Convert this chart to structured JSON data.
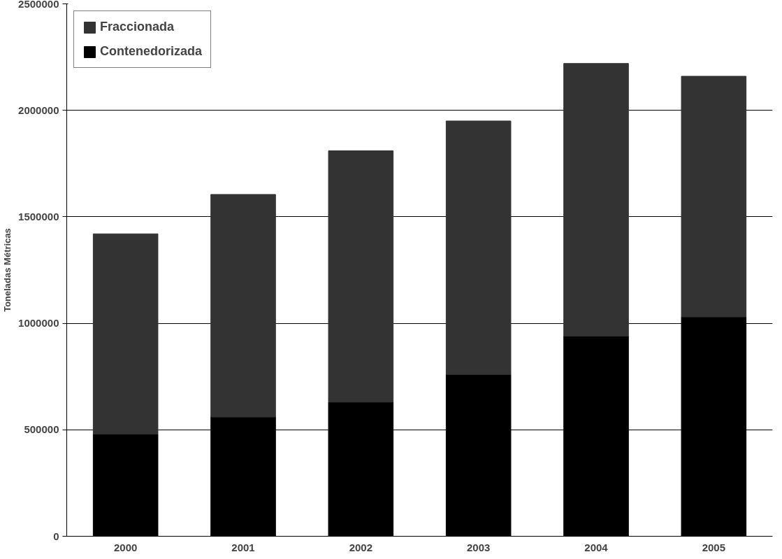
{
  "chart_data": {
    "type": "bar",
    "stacked": true,
    "ylabel": "Toneladas Métricas",
    "categories": [
      "2000",
      "2001",
      "2002",
      "2003",
      "2004",
      "2005"
    ],
    "series": [
      {
        "name": "Contenedorizada",
        "color": "#000000",
        "values": [
          480000,
          560000,
          630000,
          760000,
          940000,
          1030000
        ]
      },
      {
        "name": "Fraccionada",
        "color": "#333333",
        "values": [
          940000,
          1045000,
          1180000,
          1190000,
          1280000,
          1130000
        ]
      }
    ],
    "ylim": [
      0,
      2500000
    ],
    "yticks": [
      0,
      500000,
      1000000,
      1500000,
      2000000,
      2500000
    ],
    "grid": "y",
    "legend": "top left"
  }
}
